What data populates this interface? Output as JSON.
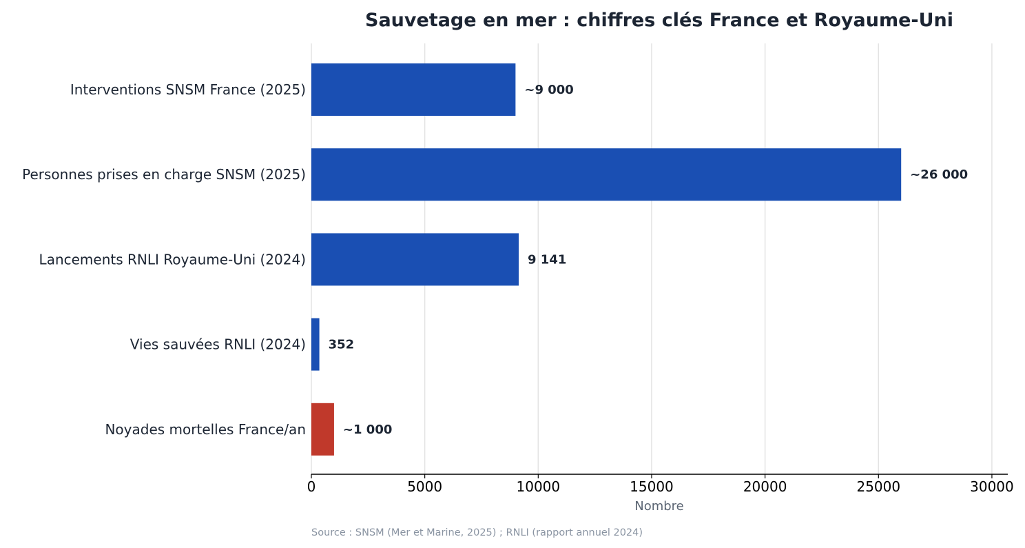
{
  "chart_data": {
    "type": "bar",
    "orientation": "horizontal",
    "title": "Sauvetage en mer : chiffres clés France et Royaume-Uni",
    "xlabel": "Nombre",
    "ylabel": "",
    "xlim": [
      0,
      30700
    ],
    "xticks": [
      0,
      5000,
      10000,
      15000,
      20000,
      25000,
      30000
    ],
    "xtick_labels": [
      "0",
      "5000",
      "10000",
      "15000",
      "20000",
      "25000",
      "30000"
    ],
    "grid": "vertical",
    "categories": [
      "Interventions SNSM France (2025)",
      "Personnes prises en charge SNSM (2025)",
      "Lancements RNLI Royaume-Uni (2024)",
      "Vies sauvées RNLI (2024)",
      "Noyades mortelles France/an"
    ],
    "values": [
      9000,
      26000,
      9141,
      352,
      1000
    ],
    "data_labels": [
      "~9 000",
      "~26 000",
      "9 141",
      "352",
      "~1 000"
    ],
    "colors": [
      "#1a4fb3",
      "#1a4fb3",
      "#1a4fb3",
      "#1a4fb3",
      "#c0392b"
    ],
    "source": "Source : SNSM (Mer et Marine, 2025) ; RNLI (rapport annuel 2024)"
  }
}
